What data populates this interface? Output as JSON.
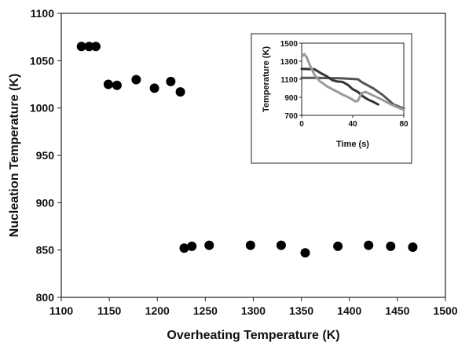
{
  "chart_data": [
    {
      "type": "scatter",
      "title": "",
      "xlabel": "Overheating Temperature (K)",
      "ylabel": "Nucleation Temperature (K)",
      "xlim": [
        1100,
        1500
      ],
      "ylim": [
        800,
        1100
      ],
      "xticks": [
        "1100",
        "1150",
        "1200",
        "1250",
        "1300",
        "1350",
        "1400",
        "1450",
        "1500"
      ],
      "yticks": [
        "800",
        "850",
        "900",
        "950",
        "1000",
        "1050",
        "1100"
      ],
      "grid": false,
      "marker_color": "#000000",
      "x": [
        1121,
        1129,
        1136,
        1149,
        1158,
        1178,
        1197,
        1214,
        1224,
        1228,
        1236,
        1254,
        1297,
        1329,
        1354,
        1388,
        1420,
        1443,
        1466
      ],
      "y": [
        1065,
        1065,
        1065,
        1025,
        1024,
        1030,
        1021,
        1028,
        1017,
        852,
        854,
        855,
        855,
        855,
        847,
        854,
        855,
        854,
        853
      ]
    },
    {
      "type": "line",
      "title": "",
      "xlabel": "Time (s)",
      "ylabel": "Temperature (K)",
      "xlim": [
        0,
        80
      ],
      "ylim": [
        700,
        1500
      ],
      "xticks": [
        "0",
        "40",
        "80"
      ],
      "yticks": [
        "700",
        "900",
        "1100",
        "1300",
        "1500"
      ],
      "grid": false,
      "series": [
        {
          "color": "#555555",
          "x": [
            0,
            12,
            24,
            30,
            36,
            44,
            48,
            56,
            64,
            72,
            80
          ],
          "y": [
            1115,
            1115,
            1112,
            1110,
            1106,
            1100,
            1060,
            1000,
            920,
            820,
            775
          ]
        },
        {
          "color": "#333333",
          "x": [
            0,
            10,
            16,
            20,
            24,
            28,
            32,
            36,
            40,
            44,
            48,
            52,
            56,
            60
          ],
          "y": [
            1215,
            1210,
            1160,
            1130,
            1090,
            1075,
            1070,
            1040,
            990,
            960,
            910,
            875,
            850,
            820
          ]
        },
        {
          "color": "#9a9a9a",
          "x": [
            0,
            2,
            4,
            6,
            10,
            14,
            20,
            26,
            32,
            38,
            42,
            44,
            47,
            50,
            56,
            62,
            70,
            80
          ],
          "y": [
            1350,
            1380,
            1340,
            1270,
            1150,
            1080,
            1020,
            975,
            930,
            890,
            855,
            860,
            945,
            960,
            920,
            880,
            820,
            760
          ]
        }
      ]
    }
  ]
}
